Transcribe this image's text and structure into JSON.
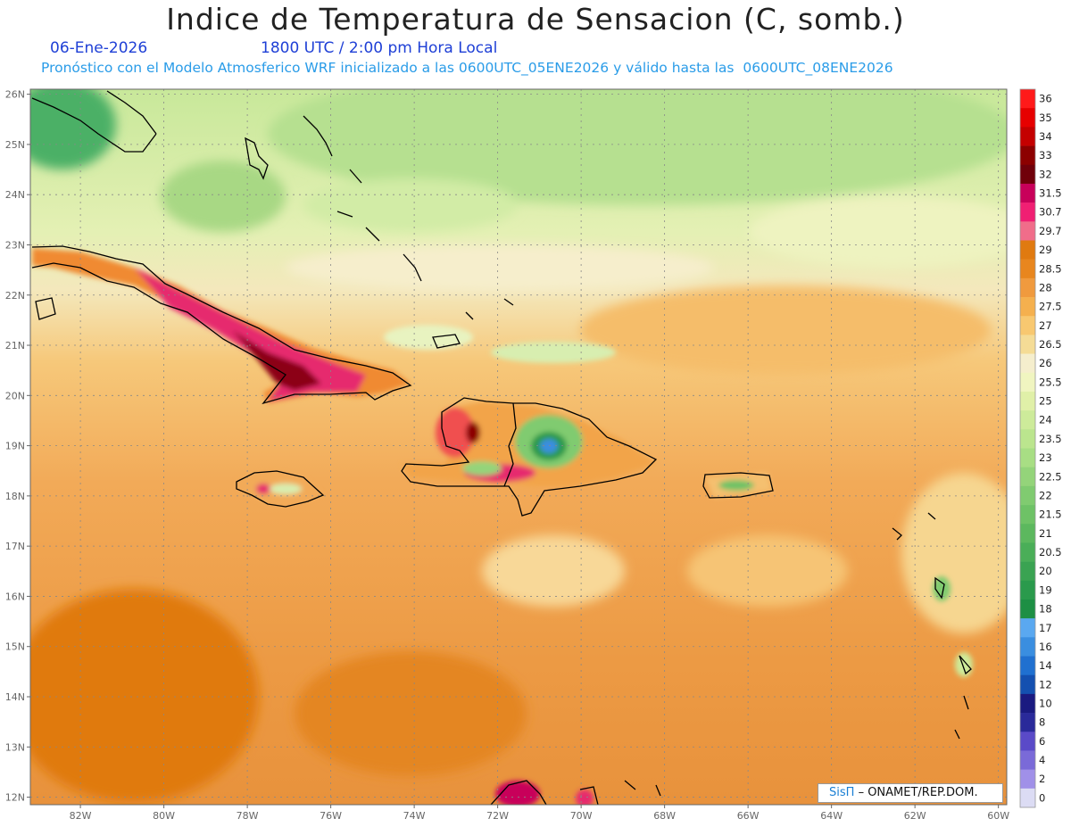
{
  "title": "Indice de Temperatura de Sensacion (C, somb.)",
  "date": "06-Ene-2026",
  "time": "1800 UTC / 2:00 pm Hora Local",
  "description": "Pronóstico con el Modelo Atmosferico WRF inicializado a las 0600UTC_05ENE2026 y válido hasta las  0600UTC_08ENE2026",
  "credit": {
    "logo": "SisΠ",
    "text": "– ONAMET/REP.DOM."
  },
  "lat_labels": [
    "26N",
    "25N",
    "24N",
    "23N",
    "22N",
    "21N",
    "20N",
    "19N",
    "18N",
    "17N",
    "16N",
    "15N",
    "14N",
    "13N",
    "12N"
  ],
  "lon_labels": [
    "82W",
    "80W",
    "78W",
    "76W",
    "74W",
    "72W",
    "70W",
    "68W",
    "66W",
    "64W",
    "62W",
    "60W"
  ],
  "legend": {
    "values": [
      "36",
      "35",
      "34",
      "33",
      "32",
      "31.5",
      "30.7",
      "29.7",
      "29",
      "28.5",
      "28",
      "27.5",
      "27",
      "26.5",
      "26",
      "25.5",
      "25",
      "24",
      "23.5",
      "23",
      "22.5",
      "22",
      "21.5",
      "21",
      "20.5",
      "20",
      "19",
      "18",
      "17",
      "16",
      "14",
      "12",
      "10",
      "8",
      "6",
      "4",
      "2",
      "0"
    ],
    "colors": [
      "#ff1a1a",
      "#e60000",
      "#c40000",
      "#8c0000",
      "#70000a",
      "#c8005a",
      "#f01f73",
      "#f06d8a",
      "#e07a10",
      "#e8861e",
      "#f09a3e",
      "#f5b04e",
      "#f8c870",
      "#f5dc96",
      "#f5eecd",
      "#f0f5c0",
      "#e0f0a8",
      "#cdeb9a",
      "#bbe58e",
      "#a8de84",
      "#94d47a",
      "#80cb70",
      "#6ec266",
      "#5cb85e",
      "#4aae58",
      "#3aa352",
      "#2a9a4c",
      "#1d8f44",
      "#5aa8f0",
      "#3a8ee0",
      "#2070d0",
      "#1450b0",
      "#1a1a80",
      "#2a2a9a",
      "#5a4ac8",
      "#7a6ad8",
      "#a090e8",
      "#dcdcf4"
    ]
  },
  "map": {
    "lon_range": [
      -83.2,
      -59.8
    ],
    "lat_range": [
      11.85,
      26.1
    ]
  }
}
